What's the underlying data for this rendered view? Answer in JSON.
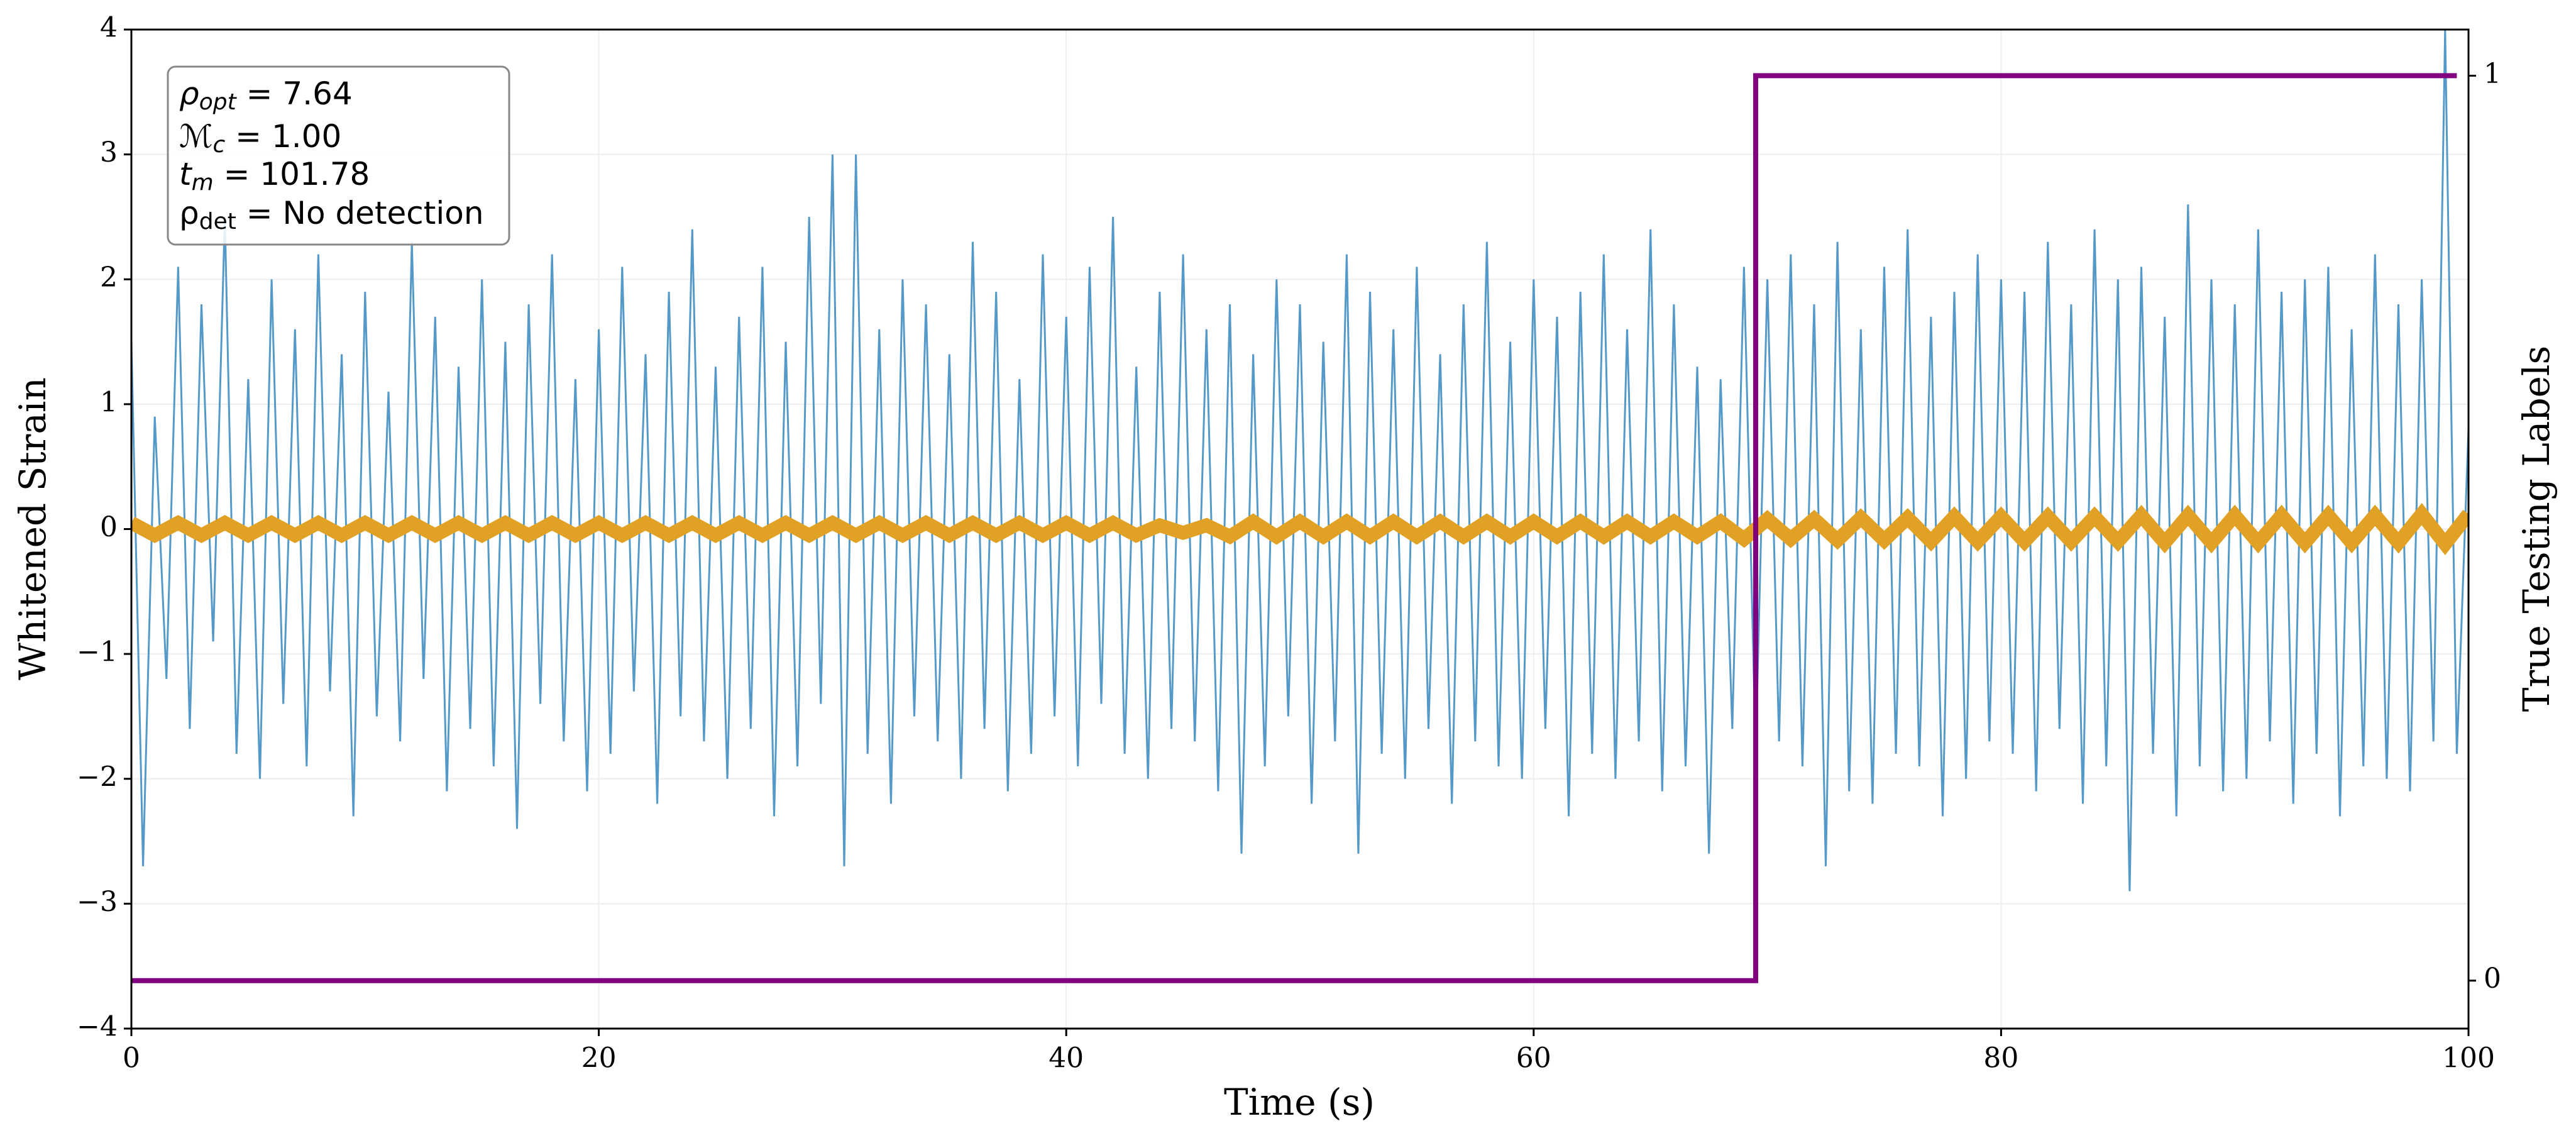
{
  "chart_data": {
    "type": "line",
    "x_label": "Time (s)",
    "y_label": "Whitened Strain",
    "y2_label": "True Testing Labels",
    "annotations": [
      {
        "symbol": "ρ",
        "subscript": "opt",
        "text": " = 7.64"
      },
      {
        "symbol": "ℳ",
        "subscript": "c",
        "text": " = 1.00"
      },
      {
        "symbol": "t",
        "subscript": "m",
        "text": " = 101.78"
      },
      {
        "symbol": "ρ",
        "subscript": "det",
        "text": " = No detection"
      }
    ],
    "xlim": [
      0,
      100
    ],
    "xticks": [
      0,
      20,
      40,
      60,
      80,
      100
    ],
    "ylim": [
      -4,
      4
    ],
    "yticks": [
      {
        "value": -4,
        "label": "−4"
      },
      {
        "value": -3,
        "label": "−3"
      },
      {
        "value": -2,
        "label": "−2"
      },
      {
        "value": -1,
        "label": "−1"
      },
      0,
      1,
      2,
      3,
      4
    ],
    "y2lim": [
      -0.053,
      1.051
    ],
    "y2ticks": [
      0,
      1
    ],
    "grid": true,
    "series": [
      {
        "color": "#5599c8",
        "x": [
          0,
          0.5,
          1,
          1.5,
          2,
          2.5,
          3,
          3.5,
          4,
          4.5,
          5,
          5.5,
          6,
          6.5,
          7,
          7.5,
          8,
          8.5,
          9,
          9.5,
          10,
          10.5,
          11,
          11.5,
          12,
          12.5,
          13,
          13.5,
          14,
          14.5,
          15,
          15.5,
          16,
          16.5,
          17,
          17.5,
          18,
          18.5,
          19,
          19.5,
          20,
          20.5,
          21,
          21.5,
          22,
          22.5,
          23,
          23.5,
          24,
          24.5,
          25,
          25.5,
          26,
          26.5,
          27,
          27.5,
          28,
          28.5,
          29,
          29.5,
          30,
          30.5,
          31,
          31.5,
          32,
          32.5,
          33,
          33.5,
          34,
          34.5,
          35,
          35.5,
          36,
          36.5,
          37,
          37.5,
          38,
          38.5,
          39,
          39.5,
          40,
          40.5,
          41,
          41.5,
          42,
          42.5,
          43,
          43.5,
          44,
          44.5,
          45,
          45.5,
          46,
          46.5,
          47,
          47.5,
          48,
          48.5,
          49,
          49.5,
          50,
          50.5,
          51,
          51.5,
          52,
          52.5,
          53,
          53.5,
          54,
          54.5,
          55,
          55.5,
          56,
          56.5,
          57,
          57.5,
          58,
          58.5,
          59,
          59.5,
          60,
          60.5,
          61,
          61.5,
          62,
          62.5,
          63,
          63.5,
          64,
          64.5,
          65,
          65.5,
          66,
          66.5,
          67,
          67.5,
          68,
          68.5,
          69,
          69.5,
          70,
          70.5,
          71,
          71.5,
          72,
          72.5,
          73,
          73.5,
          74,
          74.5,
          75,
          75.5,
          76,
          76.5,
          77,
          77.5,
          78,
          78.5,
          79,
          79.5,
          80,
          80.5,
          81,
          81.5,
          82,
          82.5,
          83,
          83.5,
          84,
          84.5,
          85,
          85.5,
          86,
          86.5,
          87,
          87.5,
          88,
          88.5,
          89,
          89.5,
          90,
          90.5,
          91,
          91.5,
          92,
          92.5,
          93,
          93.5,
          94,
          94.5,
          95,
          95.5,
          96,
          96.5,
          97,
          97.5,
          98,
          98.5,
          99,
          99.5,
          100
        ],
        "values": [
          1.5,
          -2.7,
          0.9,
          -1.2,
          2.1,
          -1.6,
          1.8,
          -0.9,
          2.5,
          -1.8,
          1.2,
          -2.0,
          2.0,
          -1.4,
          1.6,
          -1.9,
          2.2,
          -1.3,
          1.4,
          -2.3,
          1.9,
          -1.5,
          1.1,
          -1.7,
          2.3,
          -1.2,
          1.7,
          -2.1,
          1.3,
          -1.6,
          2.0,
          -1.9,
          1.5,
          -2.4,
          1.8,
          -1.4,
          2.2,
          -1.7,
          1.2,
          -2.1,
          1.6,
          -1.8,
          2.1,
          -1.3,
          1.4,
          -2.2,
          1.9,
          -1.5,
          2.4,
          -1.7,
          1.3,
          -2.0,
          1.7,
          -1.6,
          2.1,
          -2.3,
          1.5,
          -1.9,
          2.5,
          -1.4,
          3.0,
          -2.7,
          3.0,
          -1.8,
          1.6,
          -2.2,
          2.0,
          -1.5,
          1.8,
          -1.7,
          1.4,
          -2.0,
          2.3,
          -1.6,
          1.9,
          -2.1,
          1.2,
          -1.8,
          2.2,
          -1.5,
          1.7,
          -1.9,
          2.1,
          -1.4,
          2.5,
          -1.8,
          1.3,
          -2.0,
          1.9,
          -1.6,
          2.2,
          -1.7,
          1.6,
          -2.1,
          1.8,
          -2.6,
          1.4,
          -1.9,
          2.0,
          -1.5,
          1.8,
          -2.2,
          1.5,
          -1.7,
          2.2,
          -2.6,
          1.9,
          -1.8,
          1.6,
          -2.0,
          2.1,
          -1.6,
          1.4,
          -2.2,
          1.8,
          -1.7,
          2.3,
          -1.9,
          1.5,
          -2.0,
          2.0,
          -1.6,
          1.7,
          -2.3,
          1.9,
          -1.8,
          2.2,
          -2.0,
          1.6,
          -1.7,
          2.4,
          -2.1,
          1.8,
          -1.9,
          1.3,
          -2.6,
          1.2,
          -1.6,
          2.1,
          -1.8,
          2.0,
          -1.7,
          2.2,
          -1.9,
          1.8,
          -2.7,
          2.3,
          -2.1,
          1.6,
          -2.2,
          2.1,
          -1.8,
          2.4,
          -1.9,
          1.7,
          -2.3,
          1.9,
          -2.0,
          2.2,
          -1.7,
          2.0,
          -1.8,
          1.9,
          -2.1,
          2.3,
          -1.6,
          1.8,
          -2.2,
          2.4,
          -1.9,
          2.0,
          -2.9,
          2.1,
          -1.8,
          1.7,
          -2.3,
          2.6,
          -1.9,
          2.0,
          -2.1,
          1.8,
          -2.0,
          2.4,
          -1.7,
          1.9,
          -2.2,
          2.0,
          -1.8,
          2.1,
          -2.3,
          1.6,
          -1.9,
          2.2,
          -2.0,
          1.8,
          -2.1,
          2.0,
          -1.7,
          4.0,
          -1.8,
          0.8
        ]
      },
      {
        "color": "#e0a125",
        "x": [
          0,
          1,
          2,
          3,
          4,
          5,
          6,
          7,
          8,
          9,
          10,
          11,
          12,
          13,
          14,
          15,
          16,
          17,
          18,
          19,
          20,
          21,
          22,
          23,
          24,
          25,
          26,
          27,
          28,
          29,
          30,
          31,
          32,
          33,
          34,
          35,
          36,
          37,
          38,
          39,
          40,
          41,
          42,
          43,
          44,
          45,
          46,
          47,
          48,
          49,
          50,
          51,
          52,
          53,
          54,
          55,
          56,
          57,
          58,
          59,
          60,
          61,
          62,
          63,
          64,
          65,
          66,
          67,
          68,
          69,
          70,
          71,
          72,
          73,
          74,
          75,
          76,
          77,
          78,
          79,
          80,
          81,
          82,
          83,
          84,
          85,
          86,
          87,
          88,
          89,
          90,
          91,
          92,
          93,
          94,
          95,
          96,
          97,
          98,
          99,
          100
        ],
        "values": [
          0.05,
          -0.05,
          0.05,
          -0.05,
          0.05,
          -0.05,
          0.05,
          -0.05,
          0.05,
          -0.05,
          0.05,
          -0.05,
          0.05,
          -0.05,
          0.05,
          -0.05,
          0.05,
          -0.05,
          0.05,
          -0.05,
          0.05,
          -0.05,
          0.05,
          -0.05,
          0.05,
          -0.05,
          0.05,
          -0.05,
          0.05,
          -0.05,
          0.05,
          -0.05,
          0.05,
          -0.05,
          0.05,
          -0.05,
          0.05,
          -0.05,
          0.05,
          -0.05,
          0.05,
          -0.05,
          0.05,
          -0.05,
          0.03,
          -0.03,
          0.03,
          -0.06,
          0.06,
          -0.06,
          0.06,
          -0.06,
          0.06,
          -0.06,
          0.06,
          -0.06,
          0.06,
          -0.06,
          0.06,
          -0.06,
          0.06,
          -0.06,
          0.06,
          -0.06,
          0.06,
          -0.06,
          0.06,
          -0.06,
          0.06,
          -0.08,
          0.08,
          -0.08,
          0.08,
          -0.09,
          0.09,
          -0.09,
          0.09,
          -0.1,
          0.1,
          -0.1,
          0.1,
          -0.1,
          0.1,
          -0.1,
          0.1,
          -0.1,
          0.11,
          -0.11,
          0.11,
          -0.11,
          0.11,
          -0.11,
          0.11,
          -0.11,
          0.11,
          -0.11,
          0.11,
          -0.11,
          0.12,
          -0.12,
          0.12
        ]
      },
      {
        "color": "#800080",
        "axis": "y2",
        "x": [
          0,
          69.5,
          69.5,
          99.5
        ],
        "values": [
          0,
          0,
          1,
          1
        ]
      }
    ]
  }
}
